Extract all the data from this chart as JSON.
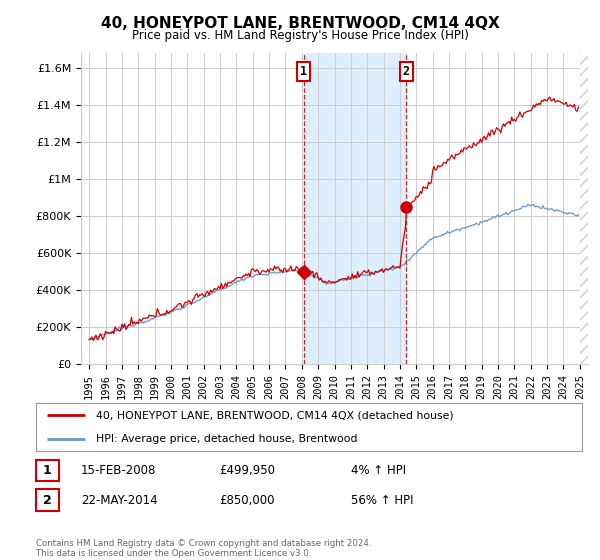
{
  "title": "40, HONEYPOT LANE, BRENTWOOD, CM14 4QX",
  "subtitle": "Price paid vs. HM Land Registry's House Price Index (HPI)",
  "ylabel_ticks": [
    "£0",
    "£200K",
    "£400K",
    "£600K",
    "£800K",
    "£1M",
    "£1.2M",
    "£1.4M",
    "£1.6M"
  ],
  "ytick_vals": [
    0,
    200000,
    400000,
    600000,
    800000,
    1000000,
    1200000,
    1400000,
    1600000
  ],
  "ylim": [
    0,
    1680000
  ],
  "xlim_start": 1994.5,
  "xlim_end": 2025.5,
  "line1_color": "#cc0000",
  "line2_color": "#6699cc",
  "marker1_date": 2008.12,
  "marker1_value": 499950,
  "marker2_date": 2014.39,
  "marker2_value": 850000,
  "vline1_x": 2008.12,
  "vline2_x": 2014.39,
  "shade_xmin": 2008.12,
  "shade_xmax": 2014.39,
  "legend_line1": "40, HONEYPOT LANE, BRENTWOOD, CM14 4QX (detached house)",
  "legend_line2": "HPI: Average price, detached house, Brentwood",
  "table_rows": [
    {
      "num": "1",
      "date": "15-FEB-2008",
      "price": "£499,950",
      "change": "4% ↑ HPI"
    },
    {
      "num": "2",
      "date": "22-MAY-2014",
      "price": "£850,000",
      "change": "56% ↑ HPI"
    }
  ],
  "footer": "Contains HM Land Registry data © Crown copyright and database right 2024.\nThis data is licensed under the Open Government Licence v3.0.",
  "background_color": "#ffffff",
  "shade_color": "#ddeeff",
  "grid_color": "#cccccc",
  "hatch_color": "#cccccc"
}
